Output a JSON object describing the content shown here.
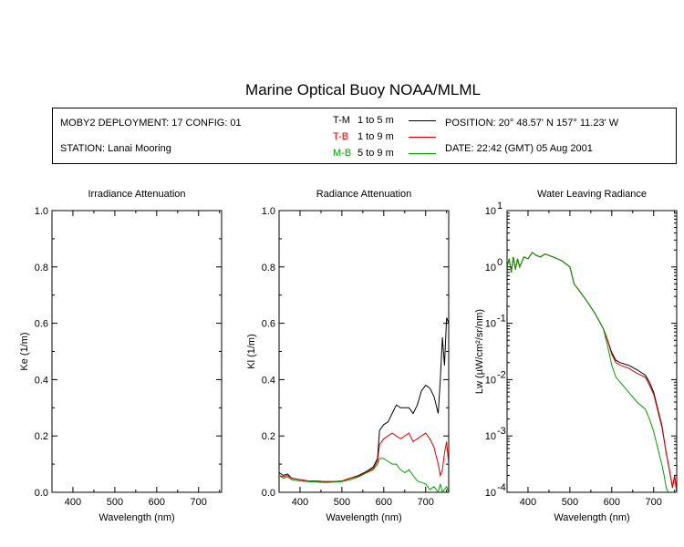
{
  "title": "Marine Optical Buoy NOAA/MLML",
  "info": {
    "deployment": "MOBY2 DEPLOYMENT: 17 CONFIG: 01",
    "station": "STATION: Lanai Mooring",
    "position": "POSITION: 20° 48.57' N   157° 11.23' W",
    "date": "DATE: 22:42 (GMT) 05 Aug 2001"
  },
  "legend": [
    {
      "code": "T-M",
      "range": "1 to 5  m",
      "color": "#000000"
    },
    {
      "code": "T-B",
      "range": "1 to 9  m",
      "color": "#dd0000"
    },
    {
      "code": "M-B",
      "range": "5 to 9  m",
      "color": "#00a000"
    }
  ],
  "chart_data": [
    {
      "type": "line",
      "title": "Irradiance Attenuation",
      "xlabel": "Wavelength (nm)",
      "ylabel": "Ke  (1/m)",
      "xlim": [
        350,
        755
      ],
      "ylim": [
        0,
        1
      ],
      "xticks": [
        "400",
        "500",
        "600",
        "700"
      ],
      "yticks": [
        "0.0",
        "0.2",
        "0.4",
        "0.6",
        "0.8",
        "1.0"
      ],
      "series": []
    },
    {
      "type": "line",
      "title": "Radiance Attenuation",
      "xlabel": "Wavelength (nm)",
      "ylabel": "Kl  (1/m)",
      "xlim": [
        350,
        755
      ],
      "ylim": [
        0,
        1
      ],
      "xticks": [
        "400",
        "500",
        "600",
        "700"
      ],
      "yticks": [
        "0.0",
        "0.2",
        "0.4",
        "0.6",
        "0.8",
        "1.0"
      ],
      "series": [
        {
          "name": "T-M",
          "color": "#000000",
          "x": [
            350,
            360,
            370,
            380,
            400,
            420,
            440,
            460,
            480,
            500,
            520,
            540,
            560,
            575,
            585,
            590,
            600,
            610,
            620,
            630,
            640,
            650,
            660,
            670,
            680,
            690,
            700,
            710,
            720,
            730,
            735,
            740,
            745,
            750,
            755
          ],
          "y": [
            0.07,
            0.06,
            0.065,
            0.05,
            0.045,
            0.04,
            0.04,
            0.038,
            0.038,
            0.04,
            0.05,
            0.06,
            0.075,
            0.09,
            0.12,
            0.22,
            0.24,
            0.25,
            0.28,
            0.31,
            0.3,
            0.3,
            0.3,
            0.28,
            0.31,
            0.36,
            0.38,
            0.37,
            0.34,
            0.28,
            0.4,
            0.55,
            0.45,
            0.62,
            0.6
          ]
        },
        {
          "name": "T-B",
          "color": "#dd0000",
          "x": [
            350,
            360,
            370,
            380,
            400,
            420,
            440,
            460,
            480,
            500,
            520,
            540,
            560,
            575,
            585,
            590,
            600,
            610,
            620,
            630,
            640,
            650,
            660,
            670,
            680,
            690,
            700,
            710,
            720,
            730,
            735,
            740,
            745,
            750,
            755
          ],
          "y": [
            0.06,
            0.055,
            0.06,
            0.05,
            0.045,
            0.04,
            0.04,
            0.038,
            0.038,
            0.04,
            0.05,
            0.058,
            0.072,
            0.085,
            0.11,
            0.17,
            0.19,
            0.2,
            0.21,
            0.2,
            0.19,
            0.2,
            0.21,
            0.18,
            0.19,
            0.2,
            0.21,
            0.19,
            0.16,
            0.1,
            0.06,
            0.08,
            0.14,
            0.18,
            0.1
          ]
        },
        {
          "name": "M-B",
          "color": "#00a000",
          "x": [
            350,
            360,
            370,
            380,
            400,
            420,
            440,
            460,
            480,
            500,
            520,
            540,
            560,
            575,
            585,
            590,
            600,
            610,
            620,
            630,
            640,
            650,
            660,
            670,
            680,
            690,
            700,
            710,
            720,
            730,
            735,
            740,
            745,
            750,
            755
          ],
          "y": [
            0.06,
            0.05,
            0.055,
            0.045,
            0.04,
            0.038,
            0.036,
            0.035,
            0.036,
            0.038,
            0.045,
            0.055,
            0.07,
            0.08,
            0.1,
            0.12,
            0.12,
            0.11,
            0.1,
            0.1,
            0.08,
            0.07,
            0.08,
            0.06,
            0.04,
            0.035,
            0.03,
            0.01,
            0.02,
            0.0,
            0.03,
            0.0,
            0.01,
            0.02,
            0.0
          ]
        }
      ]
    },
    {
      "type": "line",
      "title": "Water Leaving Radiance",
      "xlabel": "Wavelength (nm)",
      "ylabel": "Lw  (µW/cm²/sr/nm)",
      "xlim": [
        350,
        755
      ],
      "ylim": [
        0.0001,
        10
      ],
      "yscale": "log",
      "xticks": [
        "400",
        "500",
        "600",
        "700"
      ],
      "yticks": [
        "10",
        "10",
        "10",
        "10",
        "10",
        "10"
      ],
      "yticks_exp": [
        "1",
        "0",
        "-1",
        "-2",
        "-3",
        "-4"
      ],
      "series": [
        {
          "name": "T-M",
          "color": "#000000",
          "x": [
            350,
            355,
            360,
            365,
            370,
            375,
            380,
            390,
            400,
            410,
            420,
            430,
            440,
            450,
            460,
            480,
            500,
            510,
            520,
            540,
            560,
            580,
            590,
            600,
            610,
            620,
            640,
            660,
            680,
            690,
            700,
            710,
            720,
            730,
            740,
            745,
            750,
            755
          ],
          "y": [
            1.0,
            1.4,
            0.8,
            1.5,
            0.9,
            1.4,
            1.0,
            1.5,
            1.4,
            1.8,
            1.6,
            1.5,
            1.7,
            1.6,
            1.5,
            1.3,
            1.0,
            0.5,
            0.4,
            0.25,
            0.15,
            0.08,
            0.05,
            0.03,
            0.022,
            0.02,
            0.018,
            0.015,
            0.012,
            0.009,
            0.006,
            0.003,
            0.0015,
            0.0005,
            0.0002,
            0.00012,
            0.0002,
            0.0001
          ]
        },
        {
          "name": "T-B",
          "color": "#dd0000",
          "x": [
            350,
            355,
            360,
            365,
            370,
            375,
            380,
            390,
            400,
            410,
            420,
            430,
            440,
            450,
            460,
            480,
            500,
            510,
            520,
            540,
            560,
            580,
            590,
            600,
            610,
            620,
            640,
            660,
            680,
            690,
            700,
            710,
            720,
            730,
            740,
            745,
            750,
            755
          ],
          "y": [
            1.0,
            1.4,
            0.8,
            1.5,
            0.9,
            1.4,
            1.0,
            1.5,
            1.4,
            1.8,
            1.6,
            1.5,
            1.7,
            1.6,
            1.5,
            1.3,
            1.0,
            0.5,
            0.4,
            0.25,
            0.15,
            0.08,
            0.05,
            0.028,
            0.02,
            0.018,
            0.016,
            0.013,
            0.011,
            0.008,
            0.0055,
            0.0028,
            0.0014,
            0.0005,
            0.0002,
            0.00012,
            0.0002,
            0.0001
          ]
        },
        {
          "name": "M-B",
          "color": "#00a000",
          "x": [
            350,
            355,
            360,
            365,
            370,
            375,
            380,
            390,
            400,
            410,
            420,
            430,
            440,
            450,
            460,
            480,
            500,
            510,
            520,
            540,
            560,
            580,
            590,
            600,
            610,
            620,
            640,
            660,
            680,
            690,
            700,
            710,
            720,
            725,
            730,
            735
          ],
          "y": [
            1.0,
            1.4,
            0.8,
            1.5,
            0.9,
            1.4,
            1.0,
            1.5,
            1.4,
            1.8,
            1.6,
            1.5,
            1.7,
            1.6,
            1.5,
            1.3,
            1.0,
            0.5,
            0.4,
            0.25,
            0.15,
            0.08,
            0.04,
            0.018,
            0.011,
            0.009,
            0.006,
            0.004,
            0.003,
            0.002,
            0.0012,
            0.0006,
            0.0003,
            0.0002,
            0.00012,
            0.0001
          ]
        }
      ]
    }
  ]
}
